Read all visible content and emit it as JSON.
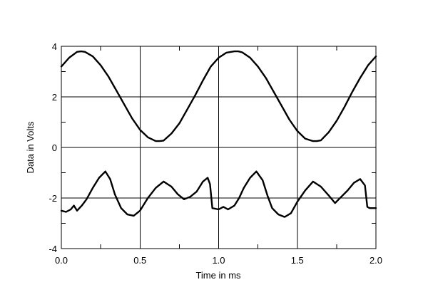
{
  "chart_data": {
    "type": "line",
    "title": "",
    "xlabel": "Time in ms",
    "ylabel": "Data in Volts",
    "xlim": [
      0.0,
      2.0
    ],
    "ylim": [
      -4,
      4
    ],
    "grid": true,
    "legend": "none",
    "x_ticks": [
      "0.0",
      "0.5",
      "1.0",
      "1.5",
      "2.0"
    ],
    "x_tick_values": [
      0.0,
      0.5,
      1.0,
      1.5,
      2.0
    ],
    "y_ticks": [
      "4",
      "2",
      "0",
      "-2",
      "-4"
    ],
    "y_tick_values": [
      4,
      2,
      0,
      -2,
      -4
    ],
    "series": [
      {
        "x": [
          0.0,
          0.05,
          0.1,
          0.125,
          0.15,
          0.2,
          0.25,
          0.3,
          0.35,
          0.4,
          0.45,
          0.5,
          0.55,
          0.6,
          0.625,
          0.65,
          0.7,
          0.75,
          0.8,
          0.85,
          0.9,
          0.95,
          1.0,
          1.05,
          1.1,
          1.125,
          1.15,
          1.2,
          1.25,
          1.3,
          1.35,
          1.4,
          1.45,
          1.5,
          1.55,
          1.6,
          1.625,
          1.65,
          1.7,
          1.75,
          1.8,
          1.85,
          1.9,
          1.95,
          2.0
        ],
        "values": [
          3.2,
          3.55,
          3.78,
          3.8,
          3.78,
          3.6,
          3.25,
          2.8,
          2.25,
          1.7,
          1.15,
          0.7,
          0.4,
          0.25,
          0.25,
          0.27,
          0.55,
          0.95,
          1.5,
          2.05,
          2.65,
          3.2,
          3.55,
          3.75,
          3.8,
          3.8,
          3.76,
          3.55,
          3.2,
          2.75,
          2.2,
          1.65,
          1.1,
          0.65,
          0.35,
          0.25,
          0.25,
          0.28,
          0.6,
          1.05,
          1.6,
          2.2,
          2.75,
          3.25,
          3.6
        ]
      },
      {
        "x": [
          0.0,
          0.03,
          0.06,
          0.08,
          0.1,
          0.13,
          0.16,
          0.2,
          0.24,
          0.28,
          0.31,
          0.34,
          0.38,
          0.42,
          0.46,
          0.5,
          0.55,
          0.6,
          0.65,
          0.7,
          0.74,
          0.78,
          0.82,
          0.86,
          0.9,
          0.93,
          0.945,
          0.96,
          1.0,
          1.03,
          1.06,
          1.1,
          1.13,
          1.16,
          1.2,
          1.24,
          1.28,
          1.31,
          1.34,
          1.38,
          1.42,
          1.46,
          1.5,
          1.55,
          1.6,
          1.65,
          1.7,
          1.74,
          1.78,
          1.82,
          1.86,
          1.9,
          1.93,
          1.945,
          1.96,
          2.0
        ],
        "values": [
          -2.5,
          -2.55,
          -2.45,
          -2.3,
          -2.5,
          -2.3,
          -2.05,
          -1.6,
          -1.2,
          -0.95,
          -1.25,
          -1.85,
          -2.4,
          -2.65,
          -2.7,
          -2.5,
          -2.0,
          -1.6,
          -1.35,
          -1.55,
          -1.85,
          -2.05,
          -1.95,
          -1.75,
          -1.35,
          -1.2,
          -1.45,
          -2.4,
          -2.45,
          -2.35,
          -2.45,
          -2.3,
          -2.0,
          -1.6,
          -1.2,
          -0.95,
          -1.3,
          -1.9,
          -2.4,
          -2.65,
          -2.75,
          -2.6,
          -2.15,
          -1.7,
          -1.35,
          -1.55,
          -1.9,
          -2.2,
          -1.95,
          -1.7,
          -1.4,
          -1.25,
          -1.5,
          -2.35,
          -2.4,
          -2.4
        ]
      }
    ]
  }
}
